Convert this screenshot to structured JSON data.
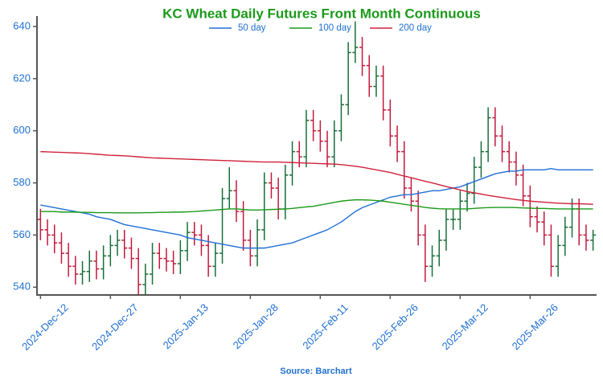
{
  "chart_data": {
    "type": "ohlc",
    "title": "KC Wheat Daily Futures Front Month Continuous",
    "source": "Source: Barchart",
    "categories": [
      "2024-Dec-12",
      null,
      null,
      null,
      null,
      null,
      null,
      null,
      null,
      null,
      "2024-Dec-27",
      null,
      null,
      null,
      null,
      null,
      null,
      null,
      null,
      null,
      "2025-Jan-13",
      null,
      null,
      null,
      null,
      null,
      null,
      null,
      null,
      null,
      "2025-Jan-28",
      null,
      null,
      null,
      null,
      null,
      null,
      null,
      null,
      null,
      "2025-Feb-11",
      null,
      null,
      null,
      null,
      null,
      null,
      null,
      null,
      null,
      "2025-Feb-26",
      null,
      null,
      null,
      null,
      null,
      null,
      null,
      null,
      null,
      "2025-Mar-12",
      null,
      null,
      null,
      null,
      null,
      null,
      null,
      null,
      null,
      "2025-Mar-26",
      null,
      null,
      null,
      null,
      null,
      null,
      null,
      null,
      null
    ],
    "open": [
      566,
      562,
      560,
      557,
      553,
      548,
      545,
      546,
      550,
      547,
      552,
      556,
      558,
      555,
      551,
      541,
      545,
      553,
      551,
      550,
      549,
      554,
      561,
      560,
      556,
      548,
      553,
      574,
      577,
      569,
      558,
      552,
      562,
      580,
      578,
      570,
      583,
      592,
      590,
      604,
      600,
      596,
      590,
      600,
      610,
      630,
      632,
      625,
      617,
      621,
      608,
      598,
      592,
      578,
      573,
      560,
      548,
      552,
      558,
      566,
      566,
      573,
      576,
      586,
      592,
      605,
      598,
      592,
      588,
      583,
      575,
      567,
      565,
      560,
      548,
      556,
      563,
      570,
      560,
      558
    ],
    "high": [
      570,
      566,
      564,
      561,
      557,
      552,
      550,
      554,
      554,
      556,
      560,
      562,
      562,
      559,
      555,
      549,
      557,
      557,
      555,
      554,
      558,
      565,
      565,
      564,
      560,
      557,
      578,
      586,
      581,
      573,
      562,
      566,
      584,
      584,
      582,
      587,
      596,
      596,
      608,
      608,
      604,
      600,
      604,
      614,
      634,
      642,
      636,
      629,
      625,
      625,
      612,
      602,
      596,
      582,
      577,
      564,
      556,
      562,
      570,
      570,
      577,
      580,
      590,
      596,
      609,
      609,
      602,
      596,
      592,
      587,
      579,
      571,
      569,
      564,
      560,
      567,
      574,
      574,
      564,
      562
    ],
    "low": [
      558,
      556,
      553,
      549,
      544,
      541,
      541,
      542,
      543,
      543,
      548,
      552,
      551,
      547,
      537,
      537,
      541,
      547,
      546,
      545,
      545,
      550,
      556,
      552,
      544,
      544,
      549,
      570,
      565,
      554,
      548,
      548,
      558,
      574,
      566,
      566,
      579,
      586,
      586,
      596,
      592,
      586,
      586,
      596,
      606,
      626,
      621,
      613,
      613,
      604,
      594,
      588,
      574,
      569,
      556,
      542,
      544,
      548,
      554,
      562,
      562,
      569,
      572,
      582,
      588,
      594,
      588,
      584,
      579,
      571,
      563,
      561,
      556,
      544,
      544,
      552,
      559,
      556,
      554,
      554
    ],
    "close": [
      562,
      560,
      557,
      553,
      548,
      545,
      546,
      550,
      547,
      552,
      556,
      558,
      555,
      551,
      541,
      545,
      553,
      551,
      550,
      549,
      554,
      561,
      560,
      556,
      548,
      553,
      574,
      577,
      569,
      558,
      552,
      562,
      580,
      578,
      570,
      583,
      592,
      590,
      604,
      600,
      596,
      590,
      600,
      610,
      630,
      632,
      625,
      617,
      621,
      608,
      598,
      592,
      578,
      573,
      560,
      548,
      552,
      558,
      566,
      566,
      573,
      576,
      586,
      592,
      605,
      598,
      592,
      588,
      583,
      575,
      567,
      565,
      560,
      548,
      556,
      563,
      570,
      560,
      558,
      560
    ],
    "up_color": "#1a6e3a",
    "down_color": "#c21a3c",
    "series": [
      {
        "name": "50 day",
        "color": "#1f6fd6",
        "values": [
          571.5,
          571,
          570.5,
          570,
          569.5,
          569,
          568.5,
          568,
          567,
          566.5,
          566,
          565,
          564,
          563.5,
          563,
          562.5,
          562,
          561.5,
          561,
          560.5,
          560,
          559,
          558.5,
          558,
          557.5,
          557,
          556.5,
          556,
          555.5,
          555,
          555,
          555,
          555,
          555.5,
          556,
          556.5,
          557,
          558,
          559,
          560,
          561,
          562,
          563.5,
          565,
          567,
          569,
          570.5,
          571.5,
          572.5,
          573.5,
          574.5,
          575,
          575.5,
          575.5,
          576,
          576.5,
          577,
          577,
          577.5,
          578,
          578.5,
          579.5,
          580.5,
          581.5,
          582.5,
          583.5,
          584,
          584.5,
          584.5,
          585,
          585,
          585,
          585,
          585.5,
          585,
          585,
          585,
          585,
          585,
          585
        ]
      },
      {
        "name": "100 day",
        "color": "#1a9a1a",
        "values": [
          569,
          569,
          569,
          568.8,
          568.8,
          568.8,
          568.7,
          568.7,
          568.6,
          568.6,
          568.6,
          568.5,
          568.5,
          568.5,
          568.5,
          568.6,
          568.6,
          568.7,
          568.7,
          568.8,
          568.8,
          568.9,
          569,
          569.2,
          569.4,
          569.6,
          569.8,
          570,
          570,
          569.8,
          569.6,
          569.6,
          569.7,
          569.8,
          569.9,
          570,
          570.2,
          570.5,
          570.8,
          571,
          571.5,
          572,
          572.5,
          573,
          573.3,
          573.5,
          573.5,
          573.4,
          573.2,
          573,
          572.6,
          572.2,
          571.8,
          571.4,
          571,
          570.6,
          570.3,
          570.1,
          570,
          570,
          570,
          570,
          570.2,
          570.4,
          570.5,
          570.6,
          570.6,
          570.6,
          570.5,
          570.4,
          570.3,
          570.2,
          570.2,
          570.1,
          570,
          570,
          570,
          570,
          570,
          570
        ]
      },
      {
        "name": "200 day",
        "color": "#d0203c",
        "values": [
          592,
          591.9,
          591.8,
          591.7,
          591.6,
          591.5,
          591.4,
          591.2,
          591,
          590.8,
          590.6,
          590.5,
          590.4,
          590.2,
          590,
          589.8,
          589.6,
          589.5,
          589.4,
          589.3,
          589.2,
          589.1,
          589,
          588.9,
          588.8,
          588.7,
          588.6,
          588.5,
          588.4,
          588.3,
          588.2,
          588.1,
          588,
          588,
          588,
          587.9,
          587.8,
          587.7,
          587.6,
          587.5,
          587.4,
          587.3,
          587.2,
          587,
          586.7,
          586.4,
          586,
          585.5,
          585,
          584.5,
          584,
          583.3,
          582.6,
          582,
          581.3,
          580.6,
          580,
          579.3,
          578.6,
          578,
          577.3,
          576.7,
          576.2,
          575.7,
          575.2,
          574.8,
          574.4,
          574,
          573.6,
          573.3,
          573,
          572.8,
          572.6,
          572.4,
          572.2,
          572.1,
          572,
          572,
          571.9,
          571.8
        ]
      }
    ],
    "ylim": [
      537,
      644
    ],
    "yticks": [
      540,
      560,
      580,
      600,
      620,
      640
    ],
    "legend": "top",
    "grid": false
  }
}
